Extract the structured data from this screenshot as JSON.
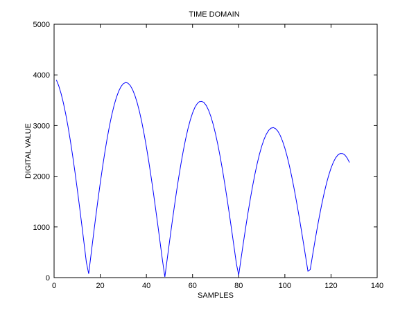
{
  "chart_data": {
    "type": "line",
    "title": "TIME DOMAIN",
    "xlabel": "SAMPLES",
    "ylabel": "DIGITAL VALUE",
    "xlim": [
      0,
      140
    ],
    "ylim": [
      0,
      5000
    ],
    "x_ticks": [
      "0",
      "20",
      "40",
      "60",
      "80",
      "100",
      "120",
      "140"
    ],
    "y_ticks": [
      "0",
      "1000",
      "2000",
      "3000",
      "4000",
      "5000"
    ],
    "grid": false,
    "legend": "none",
    "series_color": "#0000ff",
    "series": [
      {
        "x_start": 1,
        "x_end": 128,
        "x_step": 1,
        "values": [
          3900,
          3787,
          3637,
          3453,
          3237,
          2991,
          2717,
          2419,
          2100,
          1762,
          1409,
          1045,
          674,
          299,
          76,
          450,
          820,
          1181,
          1530,
          1864,
          2180,
          2475,
          2747,
          2993,
          3210,
          3398,
          3555,
          3679,
          3770,
          3827,
          3850,
          3838,
          3791,
          3711,
          3598,
          3452,
          3276,
          3070,
          2837,
          2580,
          2300,
          2001,
          1686,
          1357,
          1020,
          676,
          330,
          15,
          360,
          703,
          1040,
          1367,
          1680,
          1976,
          2252,
          2506,
          2735,
          2936,
          3108,
          3249,
          3357,
          3432,
          3473,
          3479,
          3452,
          3391,
          3297,
          3171,
          3014,
          2828,
          2615,
          2378,
          2118,
          1840,
          1546,
          1238,
          922,
          600,
          275,
          48,
          368,
          680,
          982,
          1271,
          1545,
          1801,
          2036,
          2248,
          2436,
          2597,
          2730,
          2834,
          2907,
          2949,
          2960,
          2939,
          2887,
          2805,
          2693,
          2554,
          2389,
          2199,
          1988,
          1757,
          1510,
          1249,
          977,
          697,
          412,
          126,
          159,
          439,
          711,
          972,
          1219,
          1450,
          1662,
          1852,
          2019,
          2161,
          2276,
          2363,
          2421,
          2450,
          2449,
          2419,
          2360,
          2272
        ],
        "note_values_are_estimates": true
      }
    ]
  }
}
